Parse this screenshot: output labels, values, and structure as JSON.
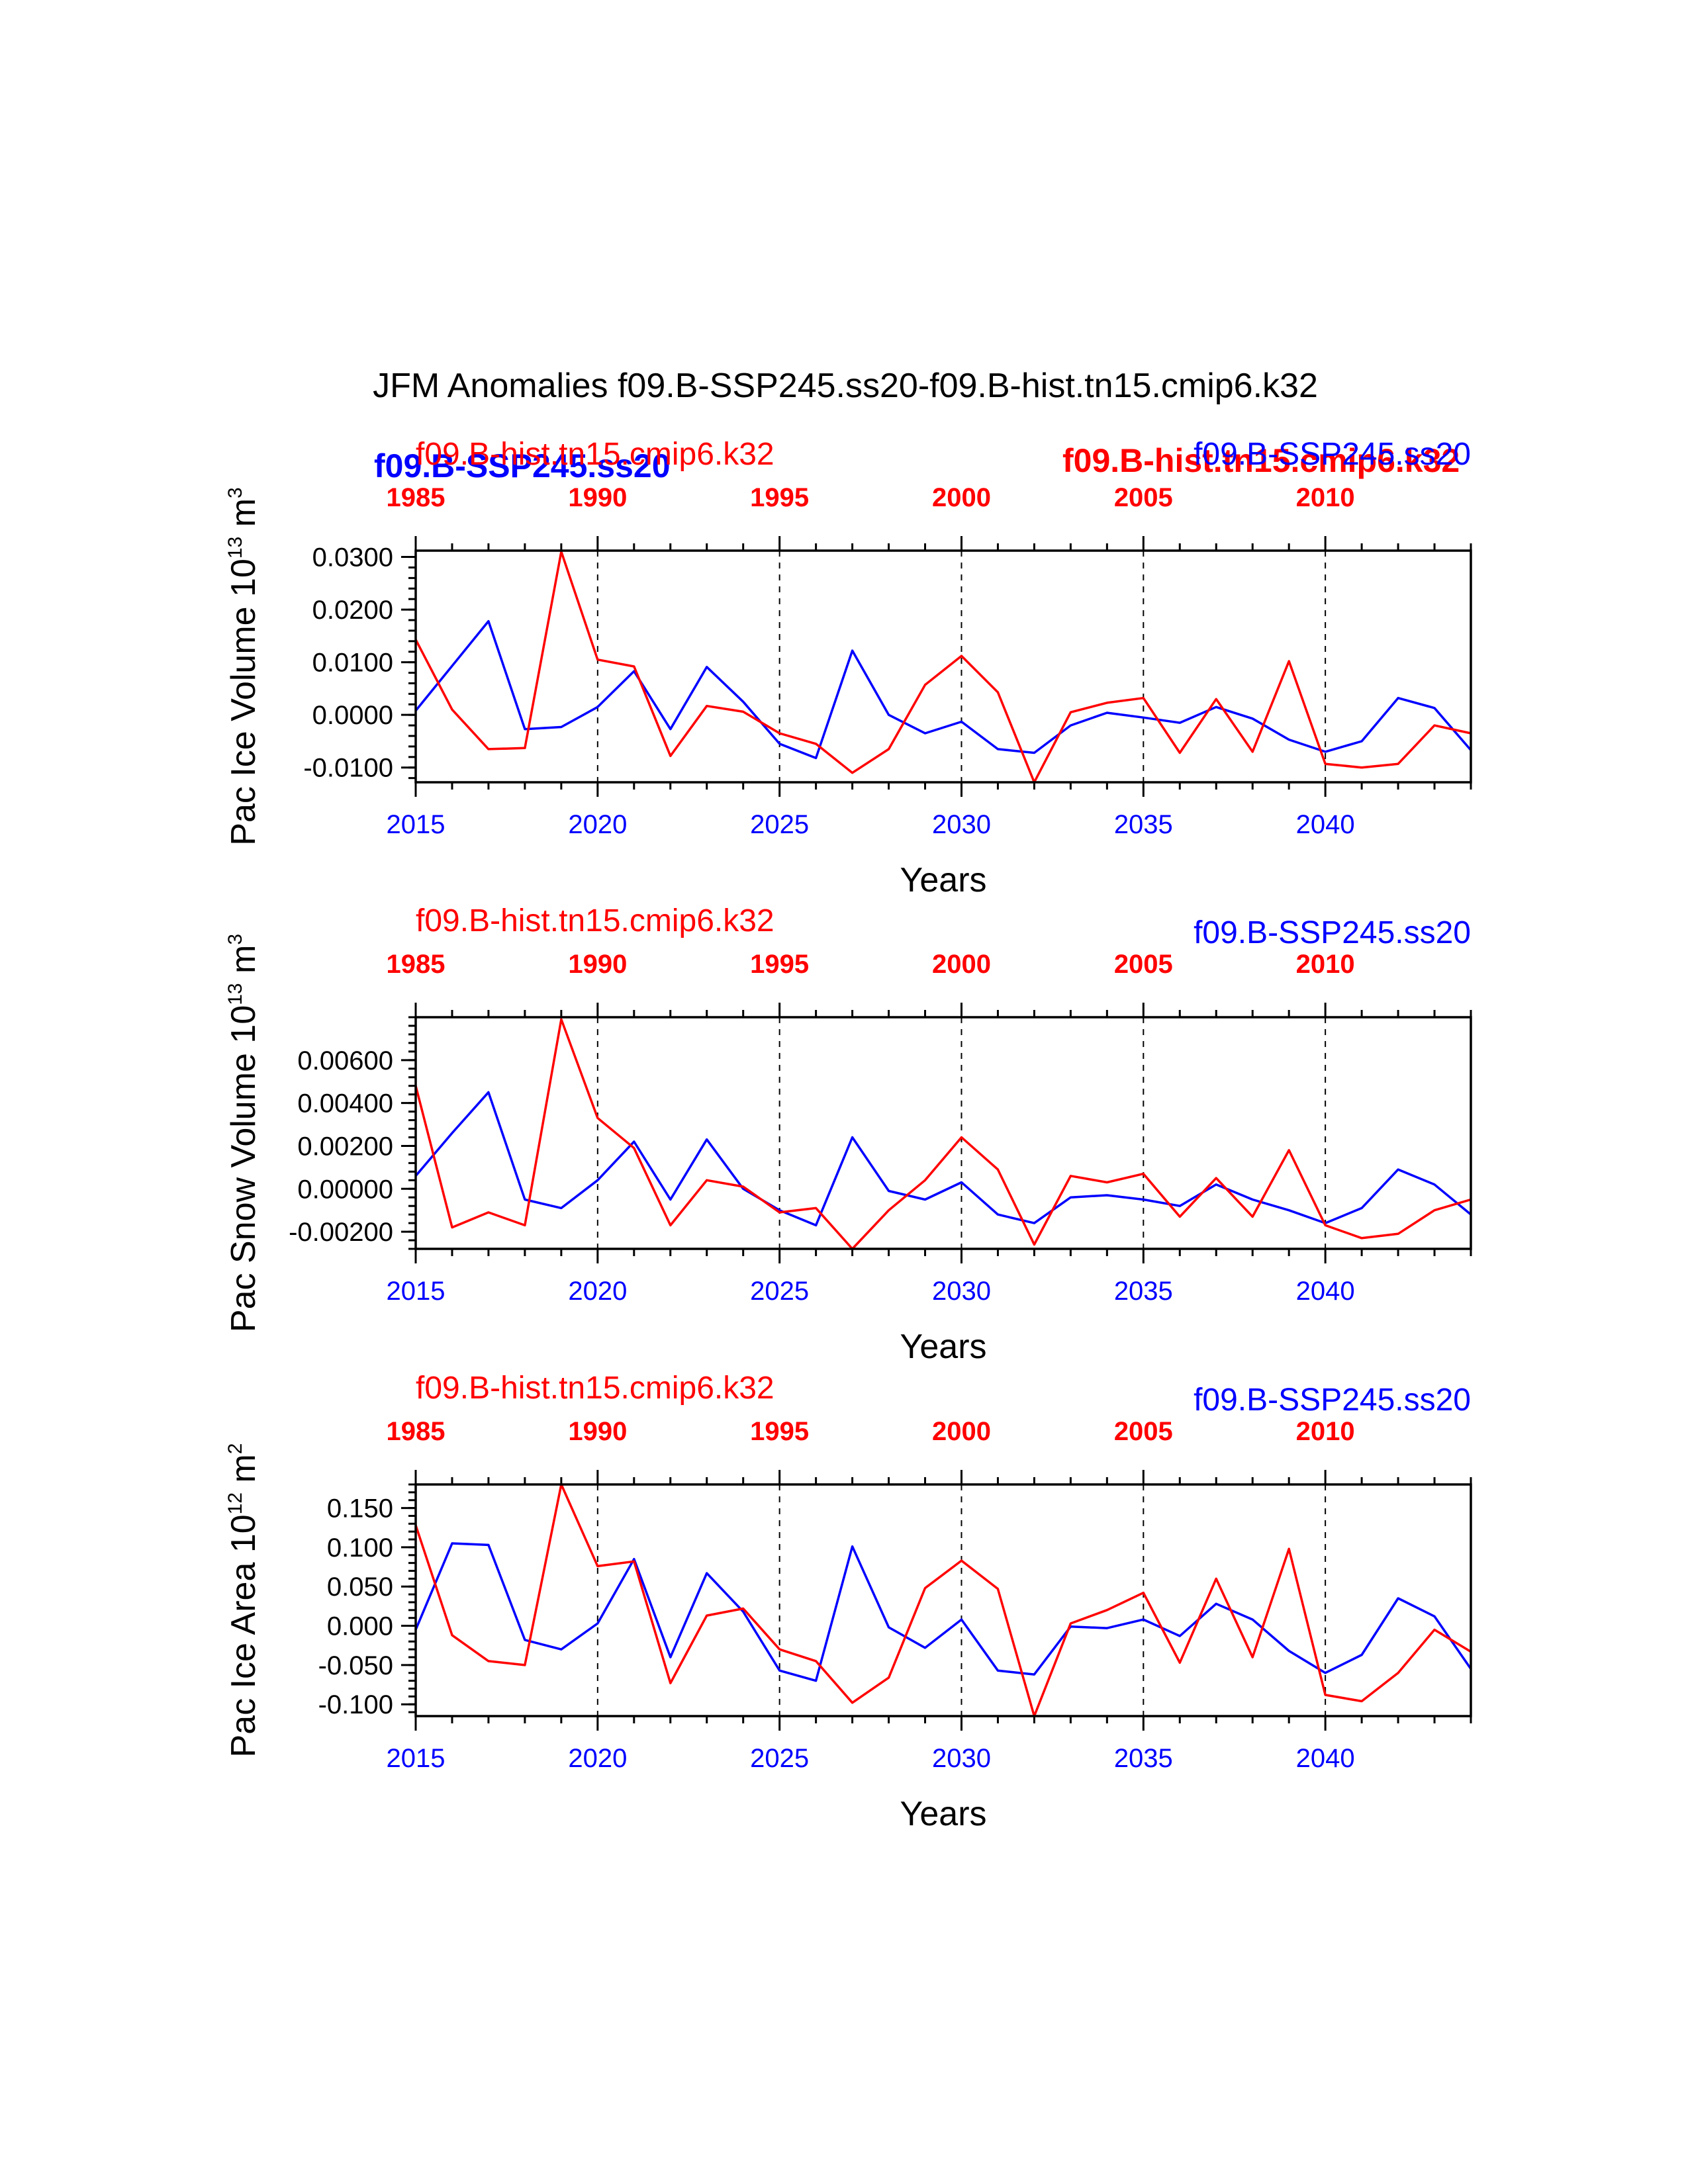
{
  "main_title": "JFM Anomalies f09.B-SSP245.ss20-f09.B-hist.tn15.cmip6.k32",
  "x_label": "Years",
  "colors": {
    "ssp": "#0000ff",
    "hist": "#ff0000",
    "axis": "#000000"
  },
  "top_overlay": {
    "ssp_bold": "f09.B-SSP245.ss20",
    "hist_bold": "f09.B-hist.tn15.cmip6.k32"
  },
  "chart_data": [
    {
      "type": "line",
      "ylabel_main": "Pac Ice Volume 10",
      "ylabel_exp": "13",
      "ylabel_unit": " m",
      "ylabel_unit_exp": "3",
      "hist_label": "f09.B-hist.tn15.cmip6.k32",
      "ssp_label": "f09.B-SSP245.ss20",
      "xlim": [
        2015,
        2044
      ],
      "ylim": [
        -0.0128,
        0.0312
      ],
      "yticks": [
        -0.01,
        0.0,
        0.01,
        0.02,
        0.03
      ],
      "ytick_labels": [
        "-0.0100",
        "0.0000",
        "0.0100",
        "0.0200",
        "0.0300"
      ],
      "yminor_step": 0.002,
      "x": [
        2015,
        2016,
        2017,
        2018,
        2019,
        2020,
        2021,
        2022,
        2023,
        2024,
        2025,
        2026,
        2027,
        2028,
        2029,
        2030,
        2031,
        2032,
        2033,
        2034,
        2035,
        2036,
        2037,
        2038,
        2039,
        2040,
        2041,
        2042,
        2043,
        2044
      ],
      "bottom_ticks": [
        2015,
        2020,
        2025,
        2030,
        2035,
        2040
      ],
      "top_ticks": [
        "1985",
        "1990",
        "1995",
        "2000",
        "2005",
        "2010"
      ],
      "series": [
        {
          "name": "f09.B-SSP245.ss20",
          "values": [
            0.0008,
            0.0093,
            0.0178,
            -0.0027,
            -0.0023,
            0.0015,
            0.0083,
            -0.0027,
            0.0091,
            0.0025,
            -0.0055,
            -0.0082,
            0.0122,
            0.0,
            -0.0035,
            -0.0013,
            -0.0065,
            -0.0072,
            -0.002,
            0.0004,
            -0.0005,
            -0.0015,
            0.0015,
            -0.0007,
            -0.0047,
            -0.007,
            -0.005,
            0.0032,
            0.0013,
            -0.0067
          ]
        },
        {
          "name": "f09.B-hist.tn15.cmip6.k32",
          "values": [
            0.0143,
            0.001,
            -0.0065,
            -0.0063,
            0.031,
            0.0105,
            0.0092,
            -0.0078,
            0.0017,
            0.0006,
            -0.0035,
            -0.0055,
            -0.011,
            -0.0065,
            0.0057,
            0.0112,
            0.0043,
            -0.0128,
            0.0005,
            0.0023,
            0.0032,
            -0.0072,
            0.003,
            -0.007,
            0.0102,
            -0.0093,
            -0.01,
            -0.0093,
            -0.002,
            -0.0035
          ]
        }
      ]
    },
    {
      "type": "line",
      "ylabel_main": "Pac Snow Volume 10",
      "ylabel_exp": "13",
      "ylabel_unit": " m",
      "ylabel_unit_exp": "3",
      "hist_label": "f09.B-hist.tn15.cmip6.k32",
      "ssp_label": "f09.B-SSP245.ss20",
      "xlim": [
        2015,
        2044
      ],
      "ylim": [
        -0.0028,
        0.008
      ],
      "yticks": [
        -0.002,
        0.0,
        0.002,
        0.004,
        0.006
      ],
      "ytick_labels": [
        "-0.00200",
        "0.00000",
        "0.00200",
        "0.00400",
        "0.00600"
      ],
      "yminor_step": 0.0004,
      "x": [
        2015,
        2016,
        2017,
        2018,
        2019,
        2020,
        2021,
        2022,
        2023,
        2024,
        2025,
        2026,
        2027,
        2028,
        2029,
        2030,
        2031,
        2032,
        2033,
        2034,
        2035,
        2036,
        2037,
        2038,
        2039,
        2040,
        2041,
        2042,
        2043,
        2044
      ],
      "bottom_ticks": [
        2015,
        2020,
        2025,
        2030,
        2035,
        2040
      ],
      "top_ticks": [
        "1985",
        "1990",
        "1995",
        "2000",
        "2005",
        "2010"
      ],
      "series": [
        {
          "name": "f09.B-SSP245.ss20",
          "values": [
            0.0006,
            0.0026,
            0.0045,
            -0.0005,
            -0.0009,
            0.0004,
            0.0022,
            -0.0005,
            0.0023,
            0.0,
            -0.001,
            -0.0017,
            0.0024,
            -0.0001,
            -0.0005,
            0.0003,
            -0.0012,
            -0.0016,
            -0.0004,
            -0.0003,
            -0.0005,
            -0.0008,
            0.0002,
            -0.0005,
            -0.001,
            -0.0016,
            -0.0009,
            0.0009,
            0.0002,
            -0.0012
          ]
        },
        {
          "name": "f09.B-hist.tn15.cmip6.k32",
          "values": [
            0.0048,
            -0.0018,
            -0.0011,
            -0.0017,
            0.0079,
            0.0033,
            0.0019,
            -0.0017,
            0.0004,
            0.0001,
            -0.0011,
            -0.0009,
            -0.0028,
            -0.001,
            0.0004,
            0.0024,
            0.0009,
            -0.0026,
            0.0006,
            0.0003,
            0.0007,
            -0.0013,
            0.0005,
            -0.0013,
            0.0018,
            -0.0017,
            -0.0023,
            -0.0021,
            -0.001,
            -0.0005
          ]
        }
      ]
    },
    {
      "type": "line",
      "ylabel_main": "Pac Ice Area 10",
      "ylabel_exp": "12",
      "ylabel_unit": " m",
      "ylabel_unit_exp": "2",
      "hist_label": "f09.B-hist.tn15.cmip6.k32",
      "ssp_label": "f09.B-SSP245.ss20",
      "xlim": [
        2015,
        2044
      ],
      "ylim": [
        -0.115,
        0.18
      ],
      "yticks": [
        -0.1,
        -0.05,
        0.0,
        0.05,
        0.1,
        0.15
      ],
      "ytick_labels": [
        "-0.100",
        "-0.050",
        "0.000",
        "0.050",
        "0.100",
        "0.150"
      ],
      "yminor_step": 0.01,
      "x": [
        2015,
        2016,
        2017,
        2018,
        2019,
        2020,
        2021,
        2022,
        2023,
        2024,
        2025,
        2026,
        2027,
        2028,
        2029,
        2030,
        2031,
        2032,
        2033,
        2034,
        2035,
        2036,
        2037,
        2038,
        2039,
        2040,
        2041,
        2042,
        2043,
        2044
      ],
      "bottom_ticks": [
        2015,
        2020,
        2025,
        2030,
        2035,
        2040
      ],
      "top_ticks": [
        "1985",
        "1990",
        "1995",
        "2000",
        "2005",
        "2010"
      ],
      "series": [
        {
          "name": "f09.B-SSP245.ss20",
          "values": [
            -0.005,
            0.105,
            0.103,
            -0.018,
            -0.03,
            0.003,
            0.085,
            -0.04,
            0.067,
            0.018,
            -0.057,
            -0.07,
            0.101,
            -0.002,
            -0.028,
            0.008,
            -0.057,
            -0.062,
            -0.001,
            -0.003,
            0.008,
            -0.013,
            0.028,
            0.008,
            -0.032,
            -0.06,
            -0.037,
            0.035,
            0.012,
            -0.055
          ]
        },
        {
          "name": "f09.B-hist.tn15.cmip6.k32",
          "values": [
            0.128,
            -0.012,
            -0.045,
            -0.05,
            0.18,
            0.076,
            0.082,
            -0.073,
            0.013,
            0.022,
            -0.03,
            -0.045,
            -0.098,
            -0.066,
            0.048,
            0.083,
            0.047,
            -0.115,
            0.003,
            0.02,
            0.042,
            -0.047,
            0.06,
            -0.04,
            0.098,
            -0.088,
            -0.096,
            -0.06,
            -0.005,
            -0.033
          ]
        }
      ]
    }
  ]
}
